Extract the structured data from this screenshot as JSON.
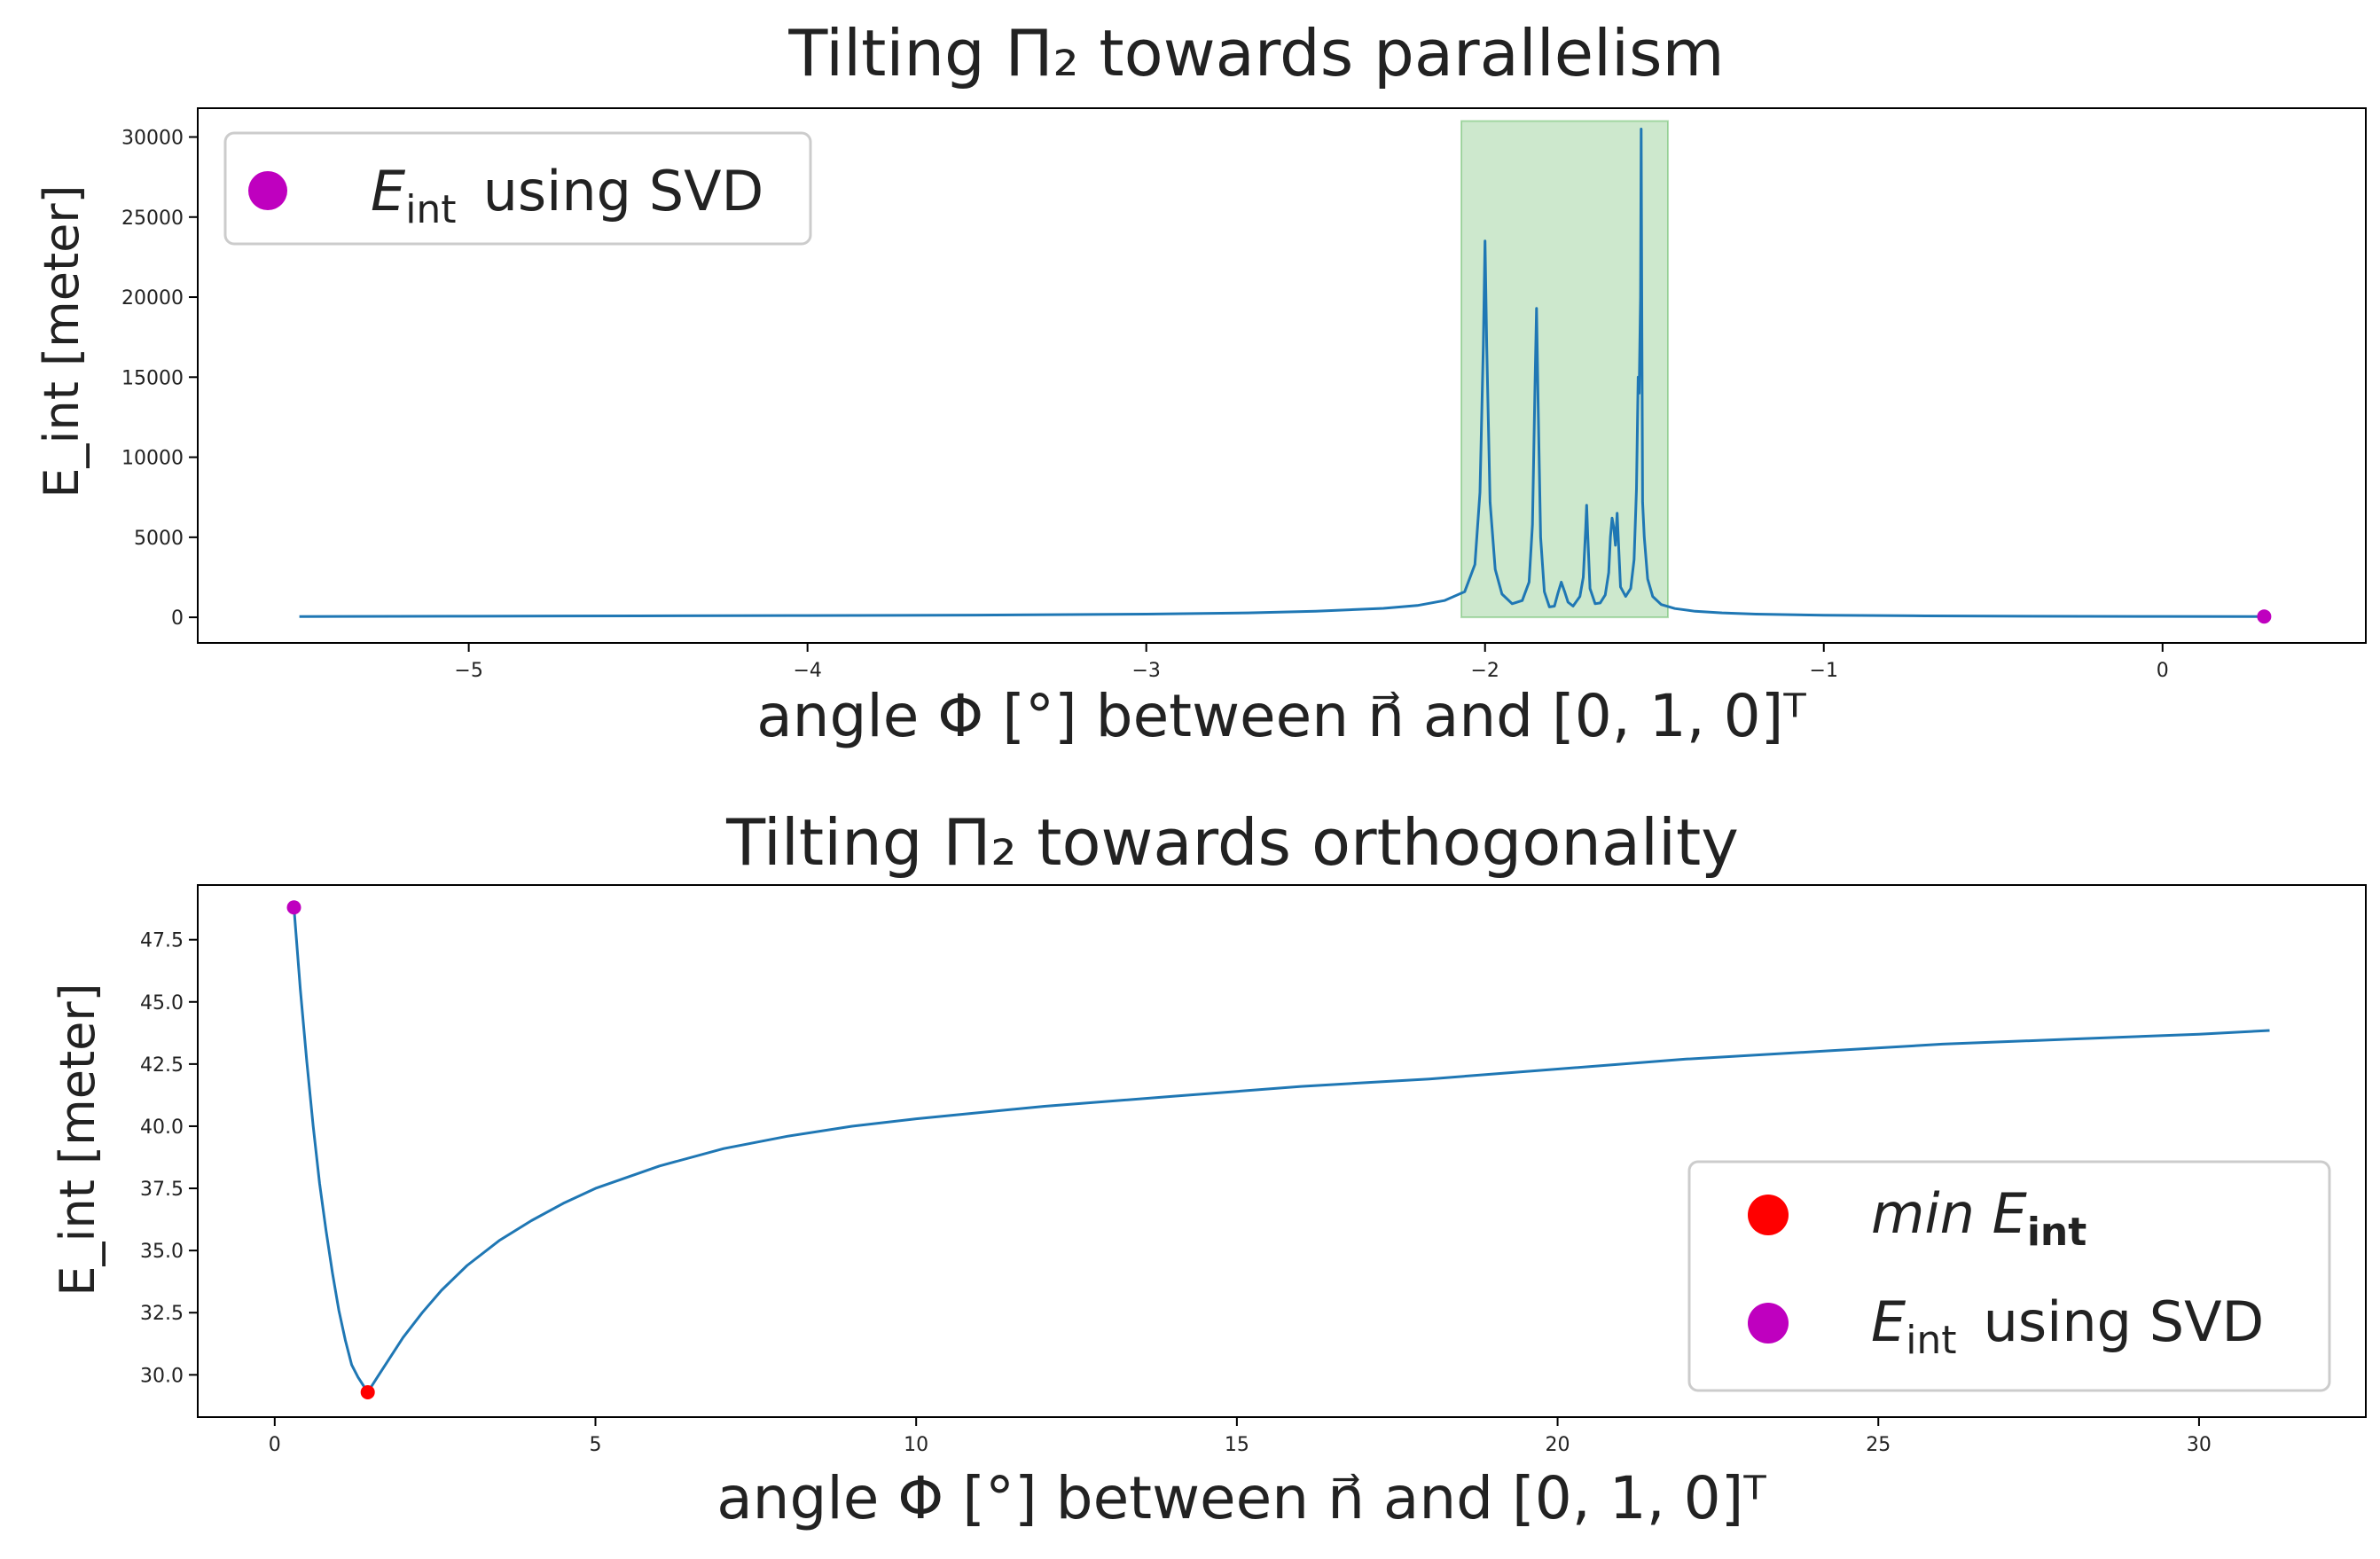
{
  "chart_data": [
    {
      "type": "line",
      "title": "Tilting Π₂ towards parallelism",
      "xlabel": "angle Φ [°] between n⃗ and [0, 1, 0]ᵀ",
      "ylabel": "E_int  [meter]",
      "xlim": [
        -5.8,
        0.6
      ],
      "ylim": [
        -1600,
        31800
      ],
      "xticks": [
        -5,
        -4,
        -3,
        -2,
        -1,
        0
      ],
      "xtick_labels": [
        "−5",
        "−4",
        "−3",
        "−2",
        "−1",
        "0"
      ],
      "yticks": [
        0,
        5000,
        10000,
        15000,
        20000,
        25000,
        30000
      ],
      "ytick_labels": [
        "0",
        "5000",
        "10000",
        "15000",
        "20000",
        "25000",
        "30000"
      ],
      "grid": false,
      "legend_position": "top-left",
      "legend": [
        {
          "label_main": "E",
          "label_sub": "int",
          "label_rest": "using SVD",
          "color": "#bf00bf"
        }
      ],
      "highlight_region": {
        "x": [
          -2.07,
          -1.46
        ],
        "y": [
          0,
          31000
        ],
        "color": "#2ca02c",
        "alpha": 0.24
      },
      "series": [
        {
          "color": "#1f77b4",
          "x": [
            -5.5,
            -5.0,
            -4.5,
            -4.0,
            -3.5,
            -3.0,
            -2.7,
            -2.5,
            -2.3,
            -2.2,
            -2.12,
            -2.06,
            -2.03,
            -2.015,
            -2.005,
            -2.0,
            -1.995,
            -1.985,
            -1.97,
            -1.95,
            -1.92,
            -1.89,
            -1.87,
            -1.86,
            -1.853,
            -1.848,
            -1.843,
            -1.836,
            -1.825,
            -1.81,
            -1.795,
            -1.785,
            -1.775,
            -1.765,
            -1.755,
            -1.74,
            -1.72,
            -1.71,
            -1.703,
            -1.7,
            -1.697,
            -1.69,
            -1.675,
            -1.66,
            -1.645,
            -1.635,
            -1.63,
            -1.625,
            -1.62,
            -1.615,
            -1.61,
            -1.6,
            -1.585,
            -1.57,
            -1.56,
            -1.553,
            -1.548,
            -1.545,
            -1.541,
            -1.539,
            -1.537,
            -1.535,
            -1.53,
            -1.52,
            -1.505,
            -1.48,
            -1.44,
            -1.38,
            -1.3,
            -1.2,
            -1.0,
            -0.7,
            -0.4,
            0.0,
            0.3
          ],
          "y": [
            50,
            70,
            90,
            110,
            140,
            200,
            280,
            380,
            560,
            740,
            1050,
            1600,
            3300,
            7800,
            17000,
            23500,
            17000,
            7200,
            3000,
            1450,
            850,
            1050,
            2200,
            5800,
            14000,
            19300,
            13000,
            5000,
            1600,
            650,
            700,
            1500,
            2200,
            1600,
            950,
            700,
            1300,
            2500,
            5500,
            7000,
            5200,
            1800,
            850,
            900,
            1400,
            2800,
            5000,
            6200,
            5600,
            4500,
            6500,
            1900,
            1300,
            1800,
            3600,
            8000,
            15000,
            14000,
            20000,
            30500,
            18000,
            7200,
            5000,
            2400,
            1300,
            800,
            550,
            380,
            280,
            200,
            130,
            90,
            70,
            55,
            50
          ]
        }
      ],
      "points": [
        {
          "x": 0.3,
          "y": 50,
          "color": "#bf00bf"
        }
      ]
    },
    {
      "type": "line",
      "title": "Tilting Π₂ towards orthogonality",
      "xlabel": "angle Φ [°] between n⃗ and [0, 1, 0]ᵀ",
      "ylabel": "E_int  [meter]",
      "xlim": [
        -1.2,
        32.6
      ],
      "ylim": [
        28.3,
        49.7
      ],
      "xticks": [
        0,
        5,
        10,
        15,
        20,
        25,
        30
      ],
      "xtick_labels": [
        "0",
        "5",
        "10",
        "15",
        "20",
        "25",
        "30"
      ],
      "yticks": [
        30.0,
        32.5,
        35.0,
        37.5,
        40.0,
        42.5,
        45.0,
        47.5
      ],
      "ytick_labels": [
        "30.0",
        "32.5",
        "35.0",
        "37.5",
        "40.0",
        "42.5",
        "45.0",
        "47.5"
      ],
      "grid": false,
      "legend_position": "lower-right",
      "legend": [
        {
          "label_main": "min E",
          "label_sub": "int",
          "label_rest": "",
          "color": "#ff0000"
        },
        {
          "label_main": "E",
          "label_sub": "int",
          "label_rest": "using SVD",
          "color": "#bf00bf"
        }
      ],
      "series": [
        {
          "color": "#1f77b4",
          "x": [
            0.3,
            0.4,
            0.5,
            0.6,
            0.7,
            0.8,
            0.9,
            1.0,
            1.1,
            1.2,
            1.3,
            1.45,
            1.6,
            1.8,
            2.0,
            2.3,
            2.6,
            3.0,
            3.5,
            4.0,
            4.5,
            5.0,
            6.0,
            7.0,
            8.0,
            9.0,
            10.0,
            12.0,
            14.0,
            16.0,
            18.0,
            20.0,
            22.0,
            24.0,
            26.0,
            28.0,
            30.0,
            31.1
          ],
          "y": [
            48.8,
            45.5,
            42.6,
            40.0,
            37.7,
            35.8,
            34.1,
            32.6,
            31.4,
            30.4,
            29.9,
            29.3,
            29.9,
            30.7,
            31.5,
            32.5,
            33.4,
            34.4,
            35.4,
            36.2,
            36.9,
            37.5,
            38.4,
            39.1,
            39.6,
            40.0,
            40.3,
            40.8,
            41.2,
            41.6,
            41.9,
            42.3,
            42.7,
            43.0,
            43.3,
            43.5,
            43.7,
            43.85
          ]
        }
      ],
      "points": [
        {
          "x": 1.45,
          "y": 29.3,
          "color": "#ff0000"
        },
        {
          "x": 0.3,
          "y": 48.8,
          "color": "#bf00bf"
        }
      ]
    }
  ]
}
